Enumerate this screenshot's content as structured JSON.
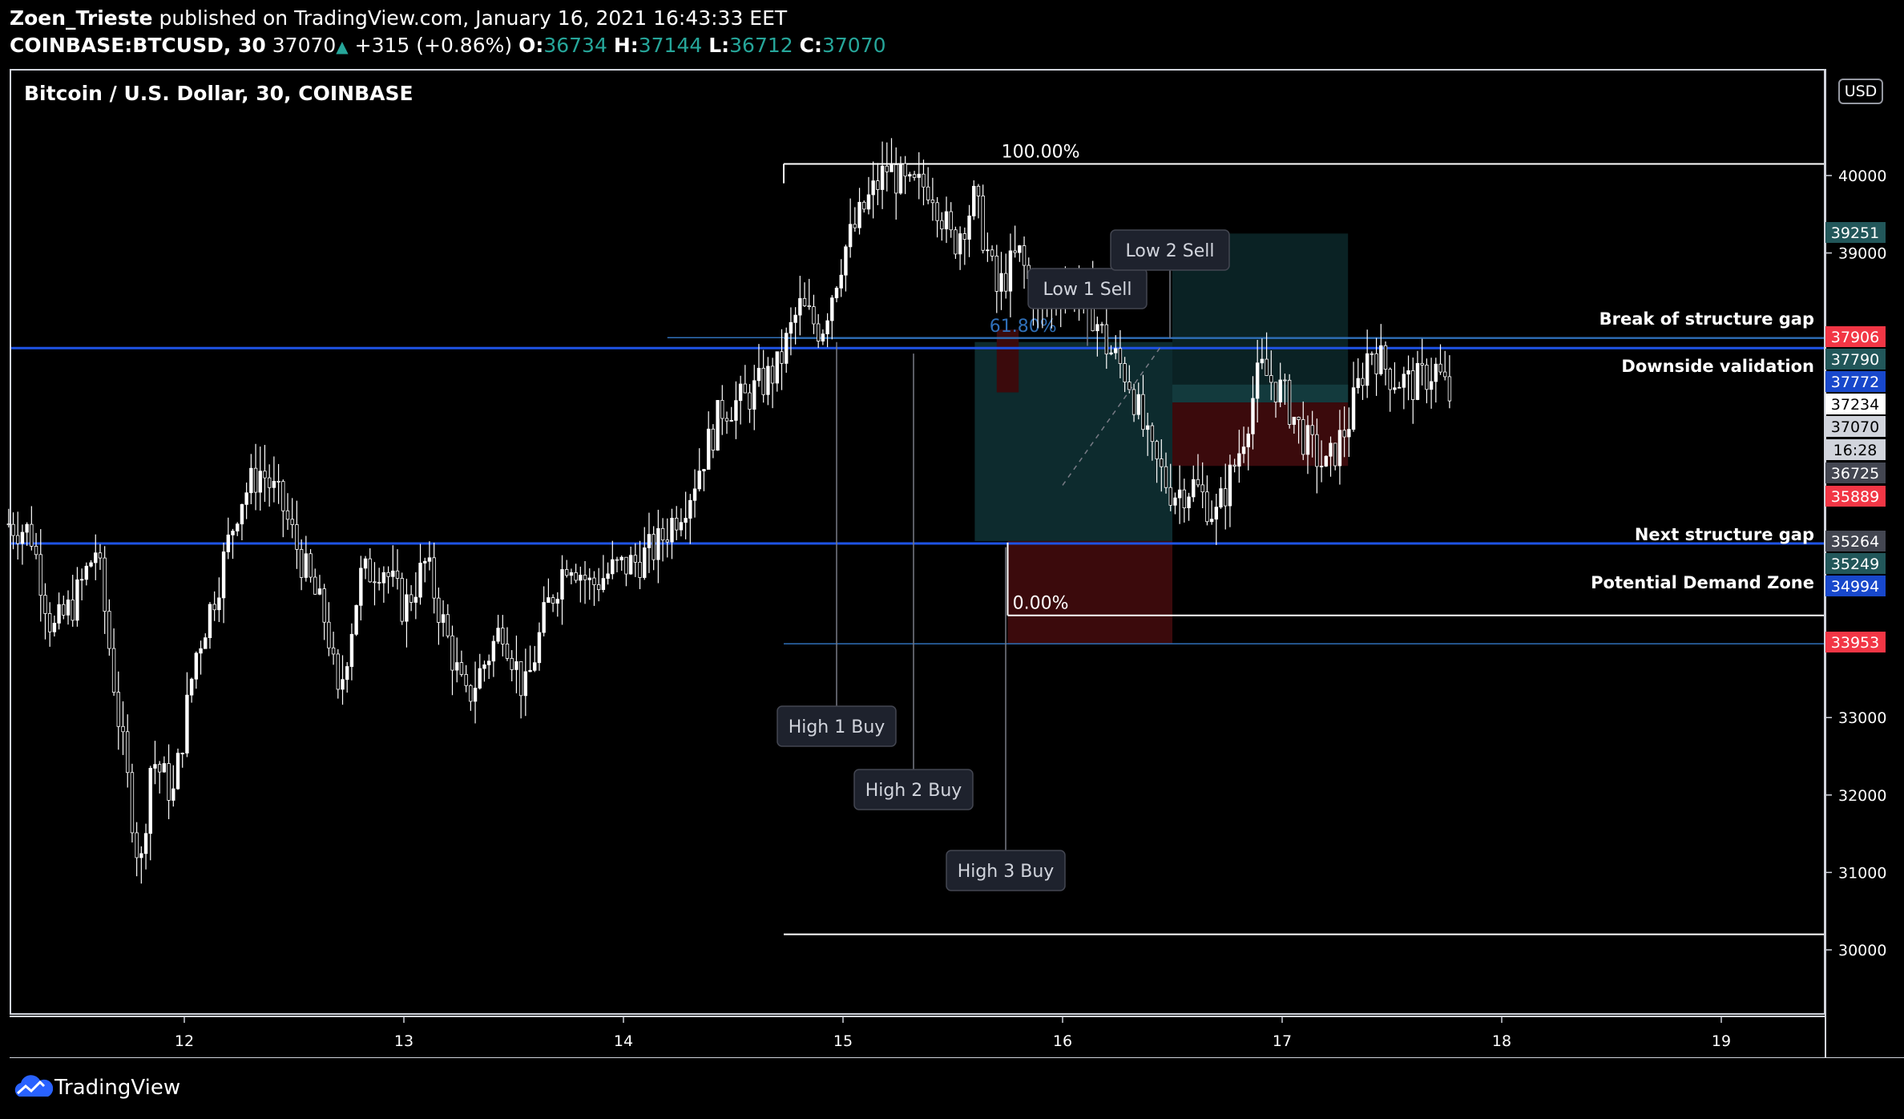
{
  "header": {
    "author": "Zoen_Trieste",
    "published": "published on TradingView.com, January 16, 2021 16:43:33 EET",
    "symbol": "COINBASE:BTCUSD, 30",
    "last": "37070",
    "up_arrow": "▲",
    "change": "+315 (+0.86%)",
    "o_label": "O:",
    "o_value": "36734",
    "h_label": "H:",
    "h_value": "37144",
    "l_label": "L:",
    "l_value": "36712",
    "c_label": "C:",
    "c_value": "37070"
  },
  "chart_title": "Bitcoin / U.S. Dollar, 30, COINBASE",
  "currency": "USD",
  "footer": {
    "brand": "TradingView",
    "logo_icon": "tradingview-cloud-icon"
  },
  "colors": {
    "bg": "#000000",
    "candle": "#ffffff",
    "blue_line": "#1e53e5",
    "teal_zone": "#0d2b2e",
    "red_zone": "#3b0a0c",
    "red_badge": "#f23645",
    "teal_badge": "#22575a",
    "blue_badge": "#1848cc",
    "grey_badge": "#434651"
  },
  "chart_data": {
    "type": "candlestick",
    "title": "Bitcoin / U.S. Dollar, 30, COINBASE",
    "x_ticks": [
      "12",
      "13",
      "14",
      "15",
      "16",
      "17",
      "18",
      "19"
    ],
    "x_range_days": [
      11.2,
      19.5
    ],
    "y_ticks": [
      30000,
      31000,
      32000,
      33000,
      34000,
      35000,
      36000,
      37000,
      38000,
      39000,
      40000
    ],
    "y_tick_labels": [
      "30000",
      "31000",
      "32000",
      "33000",
      "",
      "",
      "",
      "",
      "",
      "39000",
      "40000"
    ],
    "ylim": [
      29200,
      40950
    ],
    "price_path": [
      [
        11.2,
        35500
      ],
      [
        11.3,
        35400
      ],
      [
        11.4,
        34100
      ],
      [
        11.5,
        34500
      ],
      [
        11.6,
        35200
      ],
      [
        11.7,
        33000
      ],
      [
        11.8,
        31000
      ],
      [
        11.85,
        32500
      ],
      [
        11.95,
        32000
      ],
      [
        12.05,
        33800
      ],
      [
        12.15,
        34700
      ],
      [
        12.25,
        35800
      ],
      [
        12.35,
        36200
      ],
      [
        12.45,
        35700
      ],
      [
        12.55,
        34900
      ],
      [
        12.65,
        34200
      ],
      [
        12.7,
        33200
      ],
      [
        12.8,
        34800
      ],
      [
        12.9,
        35000
      ],
      [
        13.0,
        34400
      ],
      [
        13.1,
        35000
      ],
      [
        13.2,
        34000
      ],
      [
        13.28,
        33200
      ],
      [
        13.35,
        33600
      ],
      [
        13.45,
        34200
      ],
      [
        13.55,
        33300
      ],
      [
        13.65,
        34400
      ],
      [
        13.75,
        35100
      ],
      [
        13.85,
        34700
      ],
      [
        13.95,
        34900
      ],
      [
        14.05,
        35000
      ],
      [
        14.15,
        35200
      ],
      [
        14.3,
        35900
      ],
      [
        14.45,
        37000
      ],
      [
        14.55,
        37100
      ],
      [
        14.7,
        37500
      ],
      [
        14.8,
        38300
      ],
      [
        14.9,
        38000
      ],
      [
        15.0,
        39000
      ],
      [
        15.1,
        39600
      ],
      [
        15.2,
        40100
      ],
      [
        15.3,
        39800
      ],
      [
        15.4,
        39900
      ],
      [
        15.5,
        39100
      ],
      [
        15.6,
        39700
      ],
      [
        15.7,
        38500
      ],
      [
        15.8,
        39000
      ],
      [
        15.9,
        38200
      ],
      [
        16.0,
        38600
      ],
      [
        16.1,
        38500
      ],
      [
        16.2,
        37800
      ],
      [
        16.3,
        37400
      ],
      [
        16.4,
        36400
      ],
      [
        16.5,
        35900
      ],
      [
        16.6,
        36000
      ],
      [
        16.7,
        35600
      ],
      [
        16.8,
        36400
      ],
      [
        16.9,
        37500
      ],
      [
        17.0,
        37200
      ],
      [
        17.1,
        36600
      ],
      [
        17.2,
        36200
      ],
      [
        17.3,
        36800
      ],
      [
        17.4,
        37800
      ],
      [
        17.5,
        37400
      ],
      [
        17.6,
        37300
      ],
      [
        17.7,
        37500
      ],
      [
        17.78,
        37050
      ]
    ],
    "horizontal_levels": [
      {
        "price": 37906,
        "label": "Break of structure gap",
        "style": "line"
      },
      {
        "price": 37772,
        "label": "Downside validation",
        "style": "line-blue"
      },
      {
        "price": 35264,
        "label": "Next structure gap",
        "style": "line"
      },
      {
        "price": 35249,
        "label": "",
        "style": "line-blue"
      },
      {
        "price": 33953,
        "label": "",
        "style": "line-thin"
      }
    ],
    "fib": [
      {
        "label": "100.00%",
        "price": 40150
      },
      {
        "label": "61.80%",
        "price": 37900
      },
      {
        "label": "0.00%",
        "price": 34320
      }
    ],
    "annotations": [
      {
        "text": "High 1 Buy",
        "day": 14.98,
        "price": 38250
      },
      {
        "text": "High 2 Buy",
        "day": 15.33,
        "price": 37900
      },
      {
        "text": "High 3 Buy",
        "day": 15.75,
        "price": 35300
      },
      {
        "text": "Low 1 Sell",
        "day": 16.12,
        "price": 37800
      },
      {
        "text": "Low 2 Sell",
        "day": 16.5,
        "price": 38100
      }
    ],
    "price_badges": [
      {
        "value": "39251",
        "color": "#22575a"
      },
      {
        "value": "37906",
        "color": "#f23645"
      },
      {
        "value": "37790",
        "color": "#22575a"
      },
      {
        "value": "37772",
        "color": "#1848cc"
      },
      {
        "value": "37234",
        "color": "#ffffff"
      },
      {
        "value": "37070",
        "color": "#d1d4dc"
      },
      {
        "value": "16:28",
        "color": "#d1d4dc"
      },
      {
        "value": "36725",
        "color": "#434651"
      },
      {
        "value": "35889",
        "color": "#f23645"
      },
      {
        "value": "35264",
        "color": "#434651"
      },
      {
        "value": "35249",
        "color": "#22575a"
      },
      {
        "value": "34994",
        "color": "#1848cc"
      },
      {
        "value": "33953",
        "color": "#f23645"
      }
    ],
    "right_labels": [
      "Break of structure gap",
      "Downside validation",
      "Next structure gap",
      "Potential Demand Zone"
    ]
  }
}
